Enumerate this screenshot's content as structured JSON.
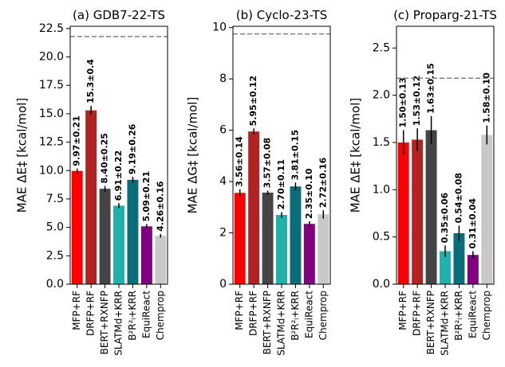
{
  "chart_data": [
    {
      "type": "bar",
      "title": "(a) GDB7-22-TS",
      "y_label": "MAE ΔE‡ [kcal/mol]",
      "categories": [
        "MFP+RF",
        "DRFP+RF",
        "BERT+RXNFP",
        "SLATMd+KRR",
        "B²R²ₗ+KRR",
        "EquiReact",
        "Chemprop"
      ],
      "values": [
        9.97,
        15.3,
        8.4,
        6.91,
        9.19,
        5.09,
        4.26
      ],
      "errors": [
        0.21,
        0.4,
        0.25,
        0.22,
        0.26,
        0.21,
        0.16
      ],
      "value_labels": [
        "9.97±0.21",
        "15.3±0.4",
        "8.40±0.25",
        "6.91±0.22",
        "9.19±0.26",
        "5.09±0.21",
        "4.26±0.16"
      ],
      "colors": [
        "#ff0000",
        "#b22222",
        "#444444",
        "#20b2aa",
        "#0a6e7a",
        "#800080",
        "#c8c8c8"
      ],
      "reference_line": 21.8,
      "ylim": [
        0,
        22.7
      ],
      "yticks": [
        {
          "value": 0,
          "label": "0.0"
        },
        2.5,
        {
          "value": 5,
          "label": "5.0"
        },
        7.5,
        {
          "value": 10,
          "label": "10.0"
        },
        12.5,
        {
          "value": 15,
          "label": "15.0"
        },
        17.5,
        {
          "value": 20,
          "label": "20.0"
        },
        22.5
      ]
    },
    {
      "type": "bar",
      "title": "(b) Cyclo-23-TS",
      "y_label": "MAE ΔG‡ [kcal/mol]",
      "categories": [
        "MFP+RF",
        "DRFP+RF",
        "BERT+RXNFP",
        "SLATMd+KRR",
        "B²R²ₗ+KRR",
        "EquiReact",
        "Chemprop"
      ],
      "values": [
        3.56,
        5.95,
        3.57,
        2.7,
        3.81,
        2.35,
        2.72
      ],
      "errors": [
        0.14,
        0.12,
        0.08,
        0.11,
        0.15,
        0.1,
        0.16
      ],
      "value_labels": [
        "3.56±0.14",
        "5.95±0.12",
        "3.57±0.08",
        "2.70±0.11",
        "3.81±0.15",
        "2.35±0.10",
        "2.72±0.16"
      ],
      "colors": [
        "#ff0000",
        "#b22222",
        "#444444",
        "#20b2aa",
        "#0a6e7a",
        "#800080",
        "#c8c8c8"
      ],
      "reference_line": 9.75,
      "ylim": [
        0,
        10.05
      ],
      "yticks": [
        0,
        2,
        4,
        6,
        8,
        10
      ]
    },
    {
      "type": "bar",
      "title": "(c) Proparg-21-TS",
      "y_label": "MAE ΔE‡ [kcal/mol]",
      "categories": [
        "MFP+RF",
        "DRFP+RF",
        "BERT+RXNFP",
        "SLATMd+KRR",
        "B²R²ₗ+KRR",
        "EquiReact",
        "Chemprop"
      ],
      "values": [
        1.5,
        1.53,
        1.63,
        0.35,
        0.54,
        0.31,
        1.58
      ],
      "errors": [
        0.13,
        0.12,
        0.15,
        0.06,
        0.08,
        0.04,
        0.1
      ],
      "value_labels": [
        "1.50±0.13",
        "1.53±0.12",
        "1.63±0.15",
        "0.35±0.06",
        "0.54±0.08",
        "0.31±0.04",
        "1.58±0.10"
      ],
      "colors": [
        "#ff0000",
        "#b22222",
        "#444444",
        "#20b2aa",
        "#0a6e7a",
        "#800080",
        "#c8c8c8"
      ],
      "reference_line": 2.18,
      "ylim": [
        0,
        2.73
      ],
      "yticks": [
        {
          "value": 0,
          "label": "0.0"
        },
        0.5,
        {
          "value": 1,
          "label": "1.0"
        },
        1.5,
        {
          "value": 2,
          "label": "2.0"
        },
        2.5
      ]
    }
  ]
}
